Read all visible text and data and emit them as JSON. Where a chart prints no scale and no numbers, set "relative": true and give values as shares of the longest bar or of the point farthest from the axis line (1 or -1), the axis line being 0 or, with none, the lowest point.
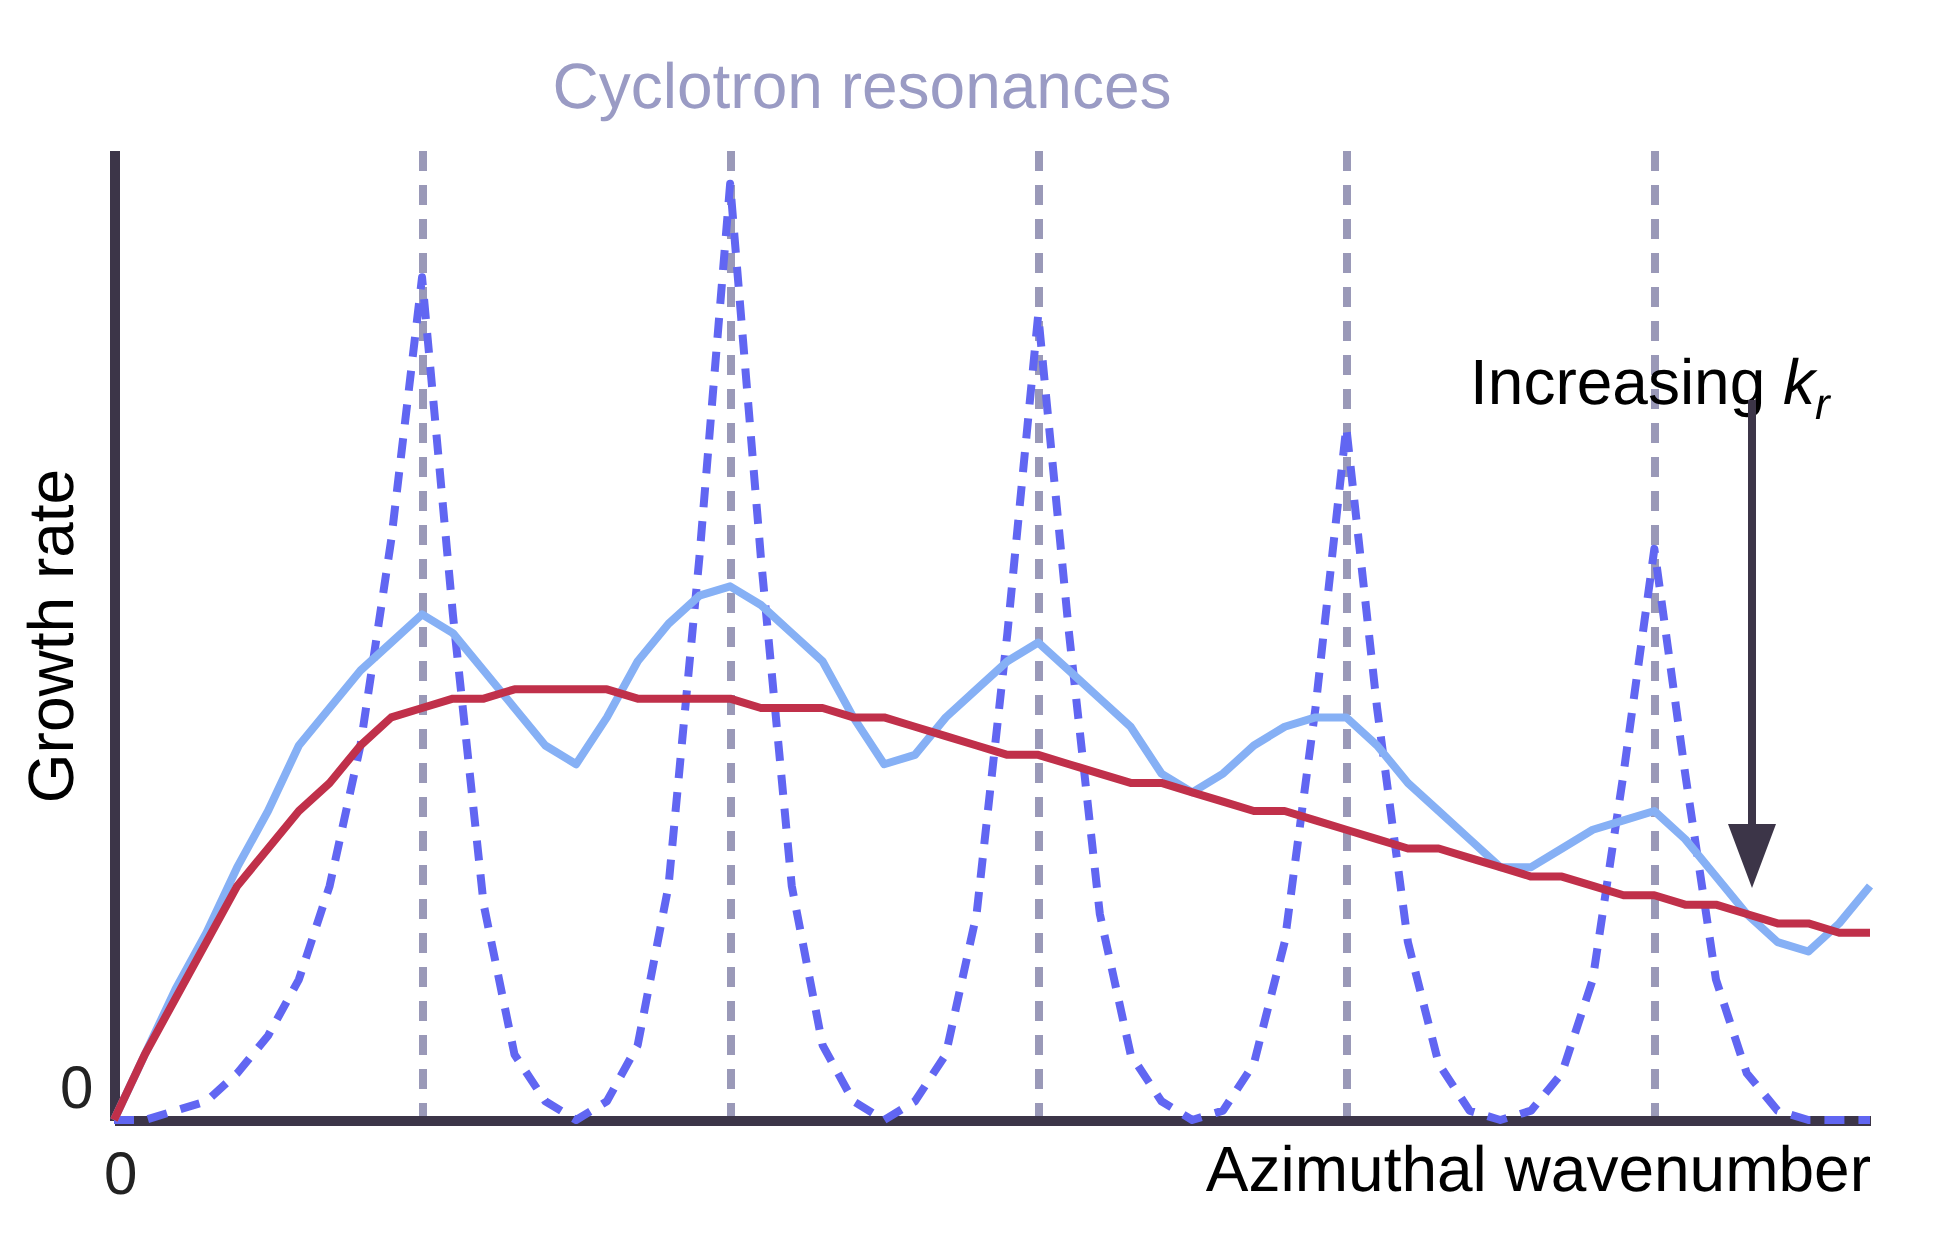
{
  "chart_data": {
    "type": "line",
    "title": "Cyclotron resonances",
    "xlabel": "Azimuthal wavenumber",
    "ylabel": "Growth rate",
    "relative": true,
    "categories": [
      null,
      null,
      null,
      null,
      null,
      null,
      null,
      null,
      null,
      null,
      null,
      null,
      null,
      null,
      null,
      null,
      null,
      null,
      null,
      null,
      null,
      null,
      null,
      null,
      null,
      null,
      null,
      null,
      null,
      null,
      null,
      null,
      null,
      null,
      null,
      null,
      null,
      null,
      null,
      null,
      null,
      null,
      null,
      null,
      null,
      null,
      null,
      null,
      null,
      null,
      null,
      null,
      null,
      null,
      null,
      null,
      null,
      null
    ],
    "annotations": [
      "0",
      "0",
      "Increasing k$_{r}$"
    ],
    "grid": "x",
    "series": [
      {
        "color": "#6166f2",
        "line_style": "dashed",
        "values": [
          0,
          0,
          0.01,
          0.02,
          0.05,
          0.09,
          0.15,
          0.25,
          0.4,
          0.62,
          0.9,
          0.54,
          0.23,
          0.07,
          0.02,
          0,
          0.02,
          0.08,
          0.25,
          0.6,
          1,
          0.6,
          0.25,
          0.08,
          0.02,
          0,
          0.02,
          0.07,
          0.22,
          0.52,
          0.86,
          0.52,
          0.22,
          0.07,
          0.02,
          0,
          0.01,
          0.06,
          0.19,
          0.44,
          0.74,
          0.44,
          0.19,
          0.06,
          0.01,
          0,
          0.01,
          0.05,
          0.15,
          0.37,
          0.61,
          0.37,
          0.15,
          0.05,
          0.01,
          0,
          0,
          0
        ]
      },
      {
        "color": "#86b0f5",
        "line_style": "solid",
        "values": [
          0,
          0.07,
          0.14,
          0.2,
          0.27,
          0.33,
          0.4,
          0.44,
          0.48,
          0.51,
          0.54,
          0.52,
          0.48,
          0.44,
          0.4,
          0.38,
          0.43,
          0.49,
          0.53,
          0.56,
          0.57,
          0.55,
          0.52,
          0.49,
          0.43,
          0.38,
          0.39,
          0.43,
          0.46,
          0.49,
          0.51,
          0.48,
          0.45,
          0.42,
          0.37,
          0.35,
          0.37,
          0.4,
          0.42,
          0.43,
          0.43,
          0.4,
          0.36,
          0.33,
          0.3,
          0.27,
          0.27,
          0.29,
          0.31,
          0.32,
          0.33,
          0.3,
          0.26,
          0.22,
          0.19,
          0.18,
          0.21,
          0.25
        ]
      },
      {
        "color": "#c0304a",
        "line_style": "solid",
        "values": [
          0,
          0.07,
          0.13,
          0.19,
          0.25,
          0.29,
          0.33,
          0.36,
          0.4,
          0.43,
          0.44,
          0.45,
          0.45,
          0.46,
          0.46,
          0.46,
          0.46,
          0.45,
          0.45,
          0.45,
          0.45,
          0.44,
          0.44,
          0.44,
          0.43,
          0.43,
          0.42,
          0.41,
          0.4,
          0.39,
          0.39,
          0.38,
          0.37,
          0.36,
          0.36,
          0.35,
          0.34,
          0.33,
          0.33,
          0.32,
          0.31,
          0.3,
          0.29,
          0.29,
          0.28,
          0.27,
          0.26,
          0.26,
          0.25,
          0.24,
          0.24,
          0.23,
          0.23,
          0.22,
          0.21,
          0.21,
          0.2,
          0.2
        ]
      }
    ]
  }
}
